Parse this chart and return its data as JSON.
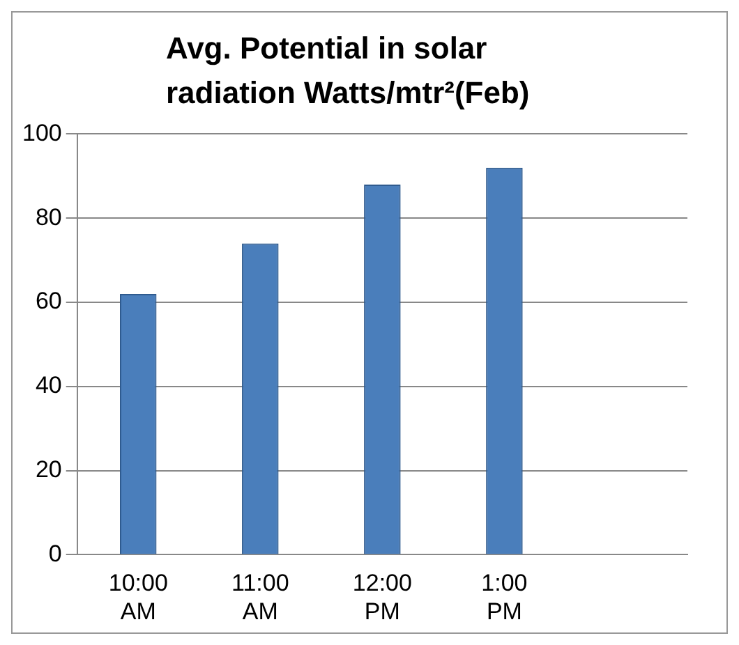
{
  "chart_data": {
    "type": "bar",
    "title": "Avg. Potential in solar radiation Watts/mtr²(Feb)",
    "categories": [
      "10:00 AM",
      "11:00 AM",
      "12:00 PM",
      "1:00 PM",
      null
    ],
    "values": [
      62,
      74,
      88,
      92,
      null
    ],
    "color": "#4a7ebb",
    "ylim": [
      0,
      100
    ],
    "yticks": [
      0,
      20,
      40,
      60,
      80,
      100
    ],
    "grid": "y",
    "legend": false
  }
}
